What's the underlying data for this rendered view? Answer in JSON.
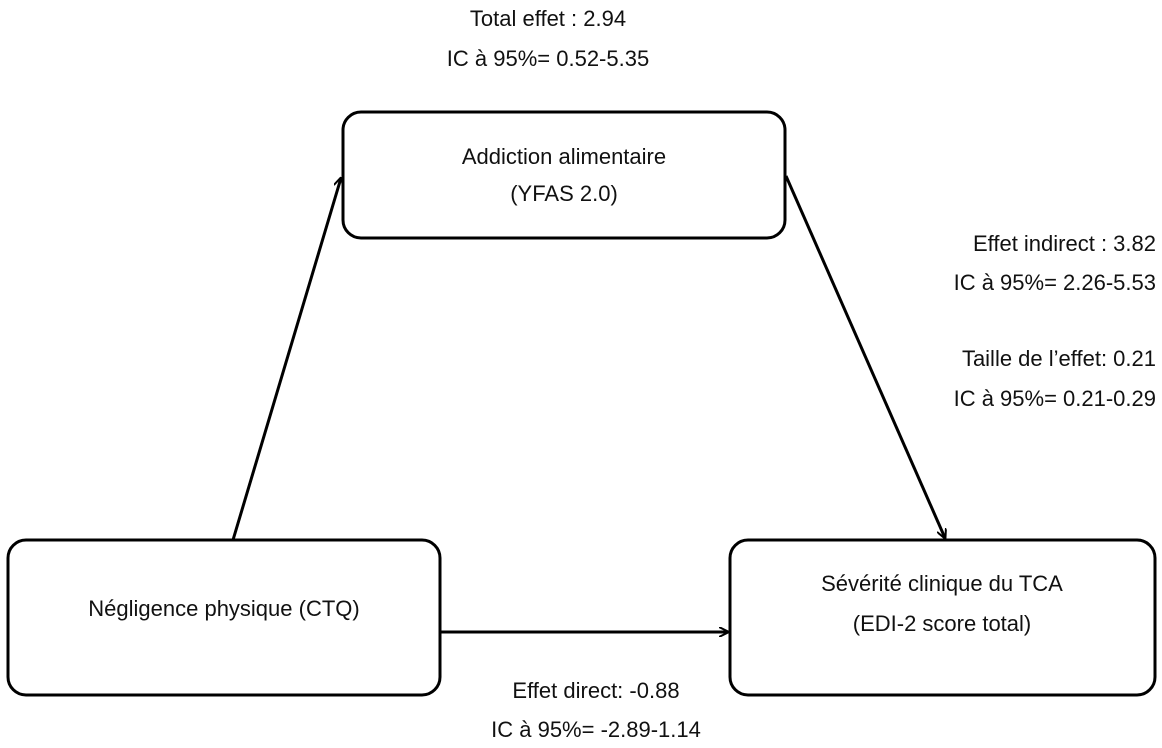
{
  "annotations": {
    "total": [
      "Total effet : 2.94",
      "IC à 95%= 0.52-5.35"
    ],
    "indirect": [
      "Effet indirect : 3.82",
      "IC à 95%= 2.26-5.53"
    ],
    "effect_size": [
      "Taille de l’effet: 0.21",
      "IC à 95%= 0.21-0.29"
    ],
    "direct": [
      "Effet direct: -0.88",
      "IC à 95%= -2.89-1.14"
    ]
  },
  "nodes": [
    {
      "lines": [
        "Addiction alimentaire",
        "(YFAS 2.0)"
      ]
    },
    {
      "lines": [
        "Négligence physique (CTQ)"
      ]
    },
    {
      "lines": [
        "Sévérité clinique du TCA",
        "(EDI-2 score total)"
      ]
    }
  ]
}
